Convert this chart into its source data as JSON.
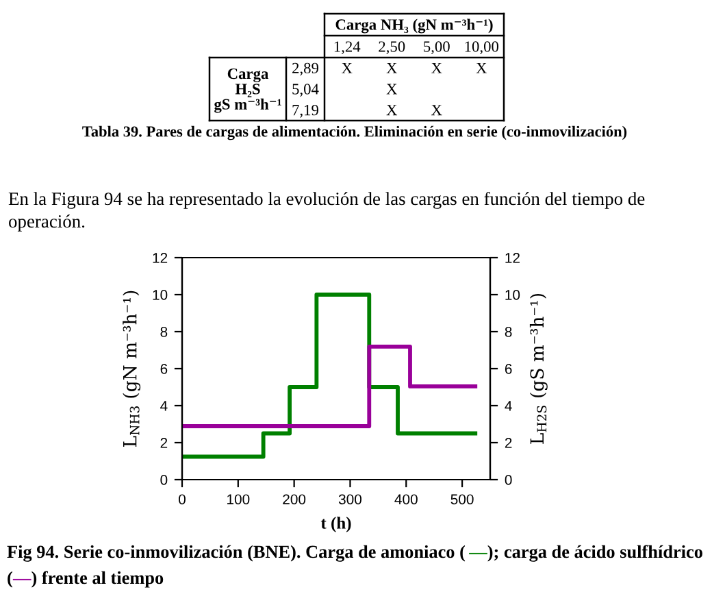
{
  "chart_data": [
    {
      "type": "other",
      "xlabel": "Carga NH₃ (gN m⁻³h⁻¹)",
      "categories": [
        "1,24",
        "2,50",
        "5,00",
        "10,00"
      ],
      "ylabel": "Carga\nH₂S\ngS m⁻³h⁻¹",
      "y_categories": [
        "2,89",
        "5,04",
        "7,19"
      ],
      "cell_labels": [
        [
          "X",
          "X",
          "X",
          "X"
        ],
        [
          null,
          "X",
          null,
          null
        ],
        [
          null,
          "X",
          "X",
          null
        ]
      ],
      "annotations": [
        "Tabla 39. Pares de cargas de alimentación. Eliminación en serie (co-inmovilización)",
        "En la Figura 94 se ha representado la evolución de las cargas en función del tiempo de operación."
      ]
    },
    {
      "type": "step",
      "xlabel": "t (h)",
      "ylabel": "L$_{NH3}$ (gN m⁻³h⁻¹)",
      "y2label": "L$_{H2S}$ (gS m⁻³h⁻¹)",
      "xlim": [
        0,
        550
      ],
      "xticks": [
        0,
        100,
        200,
        300,
        400,
        500
      ],
      "ylim": [
        0,
        12
      ],
      "yticks": [
        0,
        2,
        4,
        6,
        8,
        10,
        12
      ],
      "y2lim": [
        0,
        12
      ],
      "y2ticks": [
        0,
        2,
        4,
        6,
        8,
        10,
        12
      ],
      "series": [
        {
          "color": "#008000",
          "x": [
            0,
            145,
            192,
            240,
            334,
            385,
            527
          ],
          "values": [
            1.24,
            2.5,
            5,
            10,
            5,
            2.5,
            2.5
          ]
        },
        {
          "color": "#990099",
          "axis": "y2",
          "x": [
            0,
            334,
            407,
            527
          ],
          "values": [
            2.89,
            7.19,
            5.04,
            5.04
          ]
        }
      ],
      "annotations": [
        "Fig 94. Serie co-inmovilización (BNE). Carga de amoniaco (—); carga de ácido sulfhídrico (—) frente al tiempo"
      ]
    }
  ]
}
